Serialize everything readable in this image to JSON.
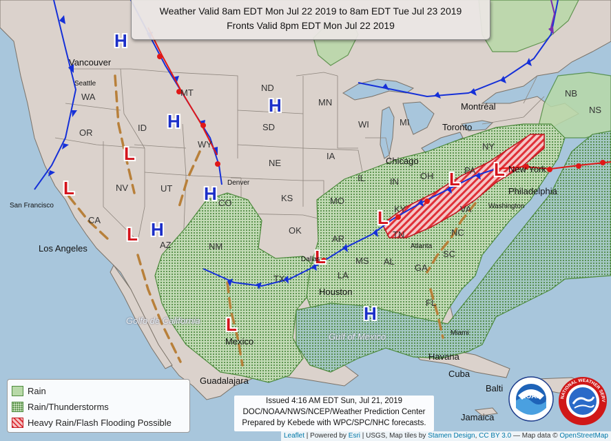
{
  "title": {
    "line1": "Weather Valid 8am EDT Mon Jul 22 2019 to 8am EDT Tue Jul 23 2019",
    "line2": "Fronts Valid 8pm EDT Mon Jul 22 2019"
  },
  "legend": {
    "rain": "Rain",
    "thunderstorms": "Rain/Thunderstorms",
    "flooding": "Heavy Rain/Flash Flooding Possible"
  },
  "issued": {
    "line1": "Issued 4:16 AM EDT Sun, Jul 21, 2019",
    "line2": "DOC/NOAA/NWS/NCEP/Weather Prediction Center",
    "line3": "Prepared by Kebede with WPC/SPC/NHC forecasts."
  },
  "attribution": {
    "leaflet": "Leaflet",
    "powered": " | Powered by ",
    "esri": "Esri",
    "rest": " | USGS, Map tiles by ",
    "stamen": "Stamen Design",
    "sep1": ", ",
    "ccby": "CC BY 3.0",
    "sep2": " — Map data © ",
    "osm": "OpenStreetMap"
  },
  "pressure_centers": {
    "high_label": "H",
    "low_label": "L",
    "colors": {
      "high": "#1c2fc8",
      "low": "#d4141c"
    }
  },
  "states": {
    "wa": "WA",
    "or": "OR",
    "ca": "CA",
    "id": "ID",
    "nv": "NV",
    "mt": "MT",
    "wy": "WY",
    "ut": "UT",
    "az": "AZ",
    "co": "CO",
    "nm": "NM",
    "nd": "ND",
    "sd": "SD",
    "ne": "NE",
    "ks": "KS",
    "ok": "OK",
    "tx": "TX",
    "mn": "MN",
    "ia": "IA",
    "mo": "MO",
    "ar": "AR",
    "la": "LA",
    "wi": "WI",
    "il": "IL",
    "in": "IN",
    "oh": "OH",
    "ms": "MS",
    "al": "AL",
    "ga": "GA",
    "sc": "SC",
    "nc": "NC",
    "va": "VA",
    "tn": "TN",
    "ky": "KY",
    "mi": "MI",
    "ny": "NY",
    "pa": "PA",
    "fl": "FL",
    "nb": "NB",
    "ns": "NS"
  },
  "cities": {
    "vancouver": "Vancouver",
    "seattle": "Seattle",
    "san_francisco": "San Francisco",
    "los_angeles": "Los Angeles",
    "denver": "Denver",
    "dallas": "Dallas",
    "houston": "Houston",
    "chicago": "Chicago",
    "toronto": "Toronto",
    "montreal": "Montréal",
    "new_york": "New York",
    "philadelphia": "Philadelphia",
    "washington": "Washington",
    "atlanta": "Atlanta",
    "miami": "Miami",
    "havana": "Havana",
    "cuba": "Cuba",
    "mexico": "Mexico",
    "guadalajara": "Guadalajara",
    "jamaica": "Jamaica",
    "baltimore_partial": "Balti"
  },
  "water": {
    "gulf_california": "Golfo de California",
    "gulf_mexico": "Gulf of Mexico"
  },
  "colors": {
    "rain_fill": "#b8d9a8",
    "ts_dot": "#3e7d2f",
    "flood_red": "#e03038",
    "cold_front": "#1530d8",
    "warm_front": "#e01818",
    "trough": "#b8803a"
  },
  "logos": {
    "noaa": "NOAA",
    "nws": "NATIONAL WEATHER SERVICE"
  }
}
